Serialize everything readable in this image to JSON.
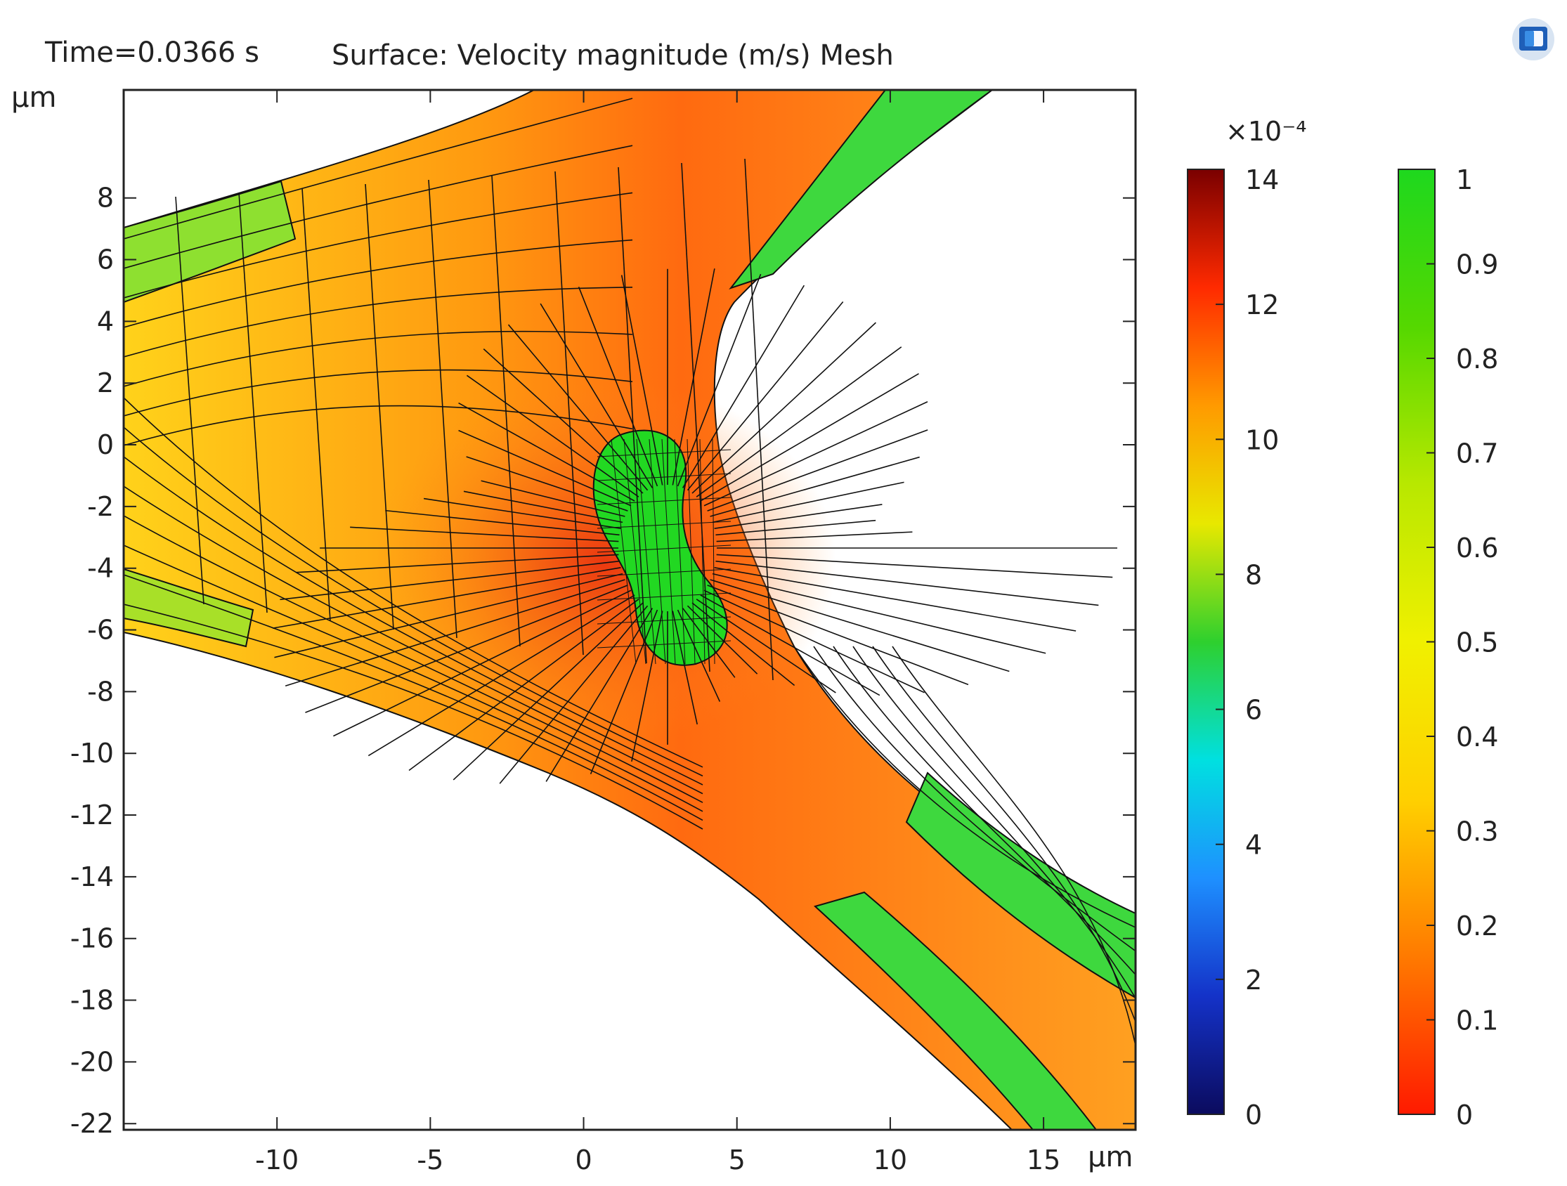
{
  "chart_data": {
    "type": "heatmap",
    "title_left": "Time=0.0366 s",
    "title_right": "Surface: Velocity magnitude (m/s) Mesh",
    "x_unit": "µm",
    "y_unit": "µm",
    "xlim": [
      -15,
      18
    ],
    "ylim": [
      -22.2,
      11.5
    ],
    "x_ticks": [
      "-10",
      "-5",
      "0",
      "5",
      "10",
      "15"
    ],
    "y_ticks": [
      "8",
      "6",
      "4",
      "2",
      "0",
      "-2",
      "-4",
      "-6",
      "-8",
      "-10",
      "-12",
      "-14",
      "-16",
      "-18",
      "-20",
      "-22"
    ],
    "grid": false,
    "colorbars": [
      {
        "name": "velocity",
        "exponent_label": "×10⁻⁴",
        "range": [
          0,
          14
        ],
        "ticks": [
          "14",
          "12",
          "10",
          "8",
          "6",
          "4",
          "2",
          "0"
        ],
        "colormap": [
          "#0b0b5e",
          "#1432c8",
          "#1e90ff",
          "#00e0e0",
          "#2ed02e",
          "#e8e800",
          "#ff9a00",
          "#ff2a00",
          "#7a0000"
        ]
      },
      {
        "name": "phase",
        "range": [
          0,
          1
        ],
        "ticks": [
          "1",
          "0.9",
          "0.8",
          "0.7",
          "0.6",
          "0.5",
          "0.4",
          "0.3",
          "0.2",
          "0.1",
          "0"
        ],
        "colormap": [
          "#ff1a00",
          "#ff7a00",
          "#ffd000",
          "#f0f000",
          "#b8e800",
          "#55d800",
          "#1ed81e"
        ]
      }
    ],
    "logo_icon": "app-logo-icon"
  }
}
